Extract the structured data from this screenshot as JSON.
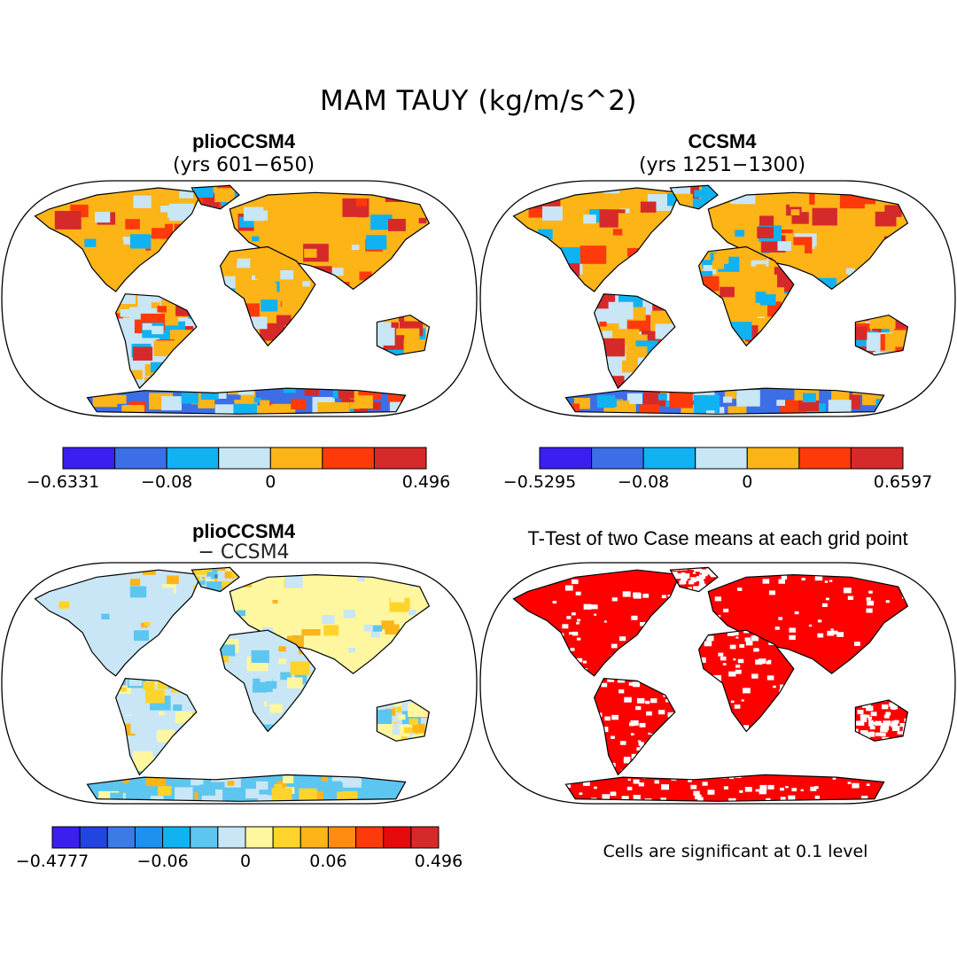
{
  "figure": {
    "title": "MAM TAUY (kg/m/s^2)"
  },
  "panels": [
    {
      "id": "plio",
      "title": "plioCCSM4",
      "subtitle": "(yrs 601−650)",
      "colorbar": {
        "colors": [
          "#3a1ff0",
          "#3c6ee6",
          "#10b2f2",
          "#c8e6f5",
          "#fdb417",
          "#ff3a0a",
          "#d62a2a"
        ],
        "labels": [
          "−0.6331",
          "−0.08",
          "0",
          "0.496"
        ],
        "label_positions": [
          0,
          2,
          4,
          7
        ]
      }
    },
    {
      "id": "ccsm4",
      "title": "CCSM4",
      "subtitle": "(yrs 1251−1300)",
      "colorbar": {
        "colors": [
          "#3a1ff0",
          "#3c6ee6",
          "#10b2f2",
          "#c8e6f5",
          "#fdb417",
          "#ff3a0a",
          "#d62a2a"
        ],
        "labels": [
          "−0.5295",
          "−0.08",
          "0",
          "0.6597"
        ],
        "label_positions": [
          0,
          2,
          4,
          7
        ]
      }
    },
    {
      "id": "diff",
      "title": "plioCCSM4",
      "subtitle": "− CCSM4",
      "colorbar": {
        "colors": [
          "#3a1ff0",
          "#2244e0",
          "#3c7ae6",
          "#1e90f0",
          "#10b2f2",
          "#5cc6f0",
          "#c8e6f5",
          "#fff7a0",
          "#ffd42a",
          "#fdb417",
          "#ff8c10",
          "#ff3a0a",
          "#e60a0a",
          "#d62a2a"
        ],
        "labels": [
          "−0.4777",
          "−0.06",
          "0",
          "0.06",
          "0.496"
        ],
        "label_positions": [
          0,
          4,
          7,
          10,
          14
        ]
      }
    },
    {
      "id": "ttest",
      "title": "T-Test of two Case means at each grid point",
      "note": "Cells are significant at 0.1 level"
    }
  ],
  "colors": {
    "land_outline": "#000000",
    "significant": "#ff0000"
  }
}
